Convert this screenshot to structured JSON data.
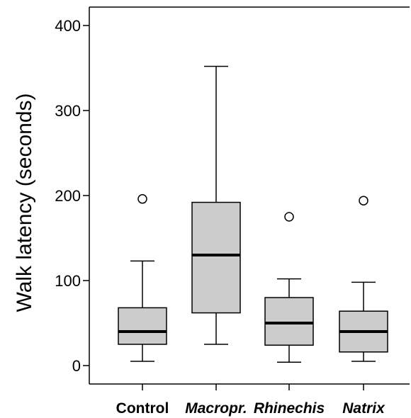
{
  "chart_data": {
    "type": "box",
    "ylabel": "Walk latency (seconds)",
    "xlabel": "",
    "ylim": [
      -20,
      420
    ],
    "yticks": [
      0,
      100,
      200,
      300,
      400
    ],
    "grid": false,
    "colors": {
      "box_fill": "#cccccc",
      "stroke": "#000000"
    },
    "categories": [
      {
        "label": "Control",
        "italic": false,
        "whisker_low": 5,
        "q1": 25,
        "median": 40,
        "q3": 68,
        "whisker_high": 123,
        "outliers": [
          196
        ]
      },
      {
        "label": "Macropr.",
        "italic": true,
        "whisker_low": 25,
        "q1": 62,
        "median": 130,
        "q3": 192,
        "whisker_high": 352,
        "outliers": []
      },
      {
        "label": "Rhinechis",
        "italic": true,
        "whisker_low": 4,
        "q1": 24,
        "median": 50,
        "q3": 80,
        "whisker_high": 102,
        "outliers": [
          175
        ]
      },
      {
        "label": "Natrix",
        "italic": true,
        "whisker_low": 5,
        "q1": 16,
        "median": 40,
        "q3": 64,
        "whisker_high": 98,
        "outliers": [
          194
        ]
      }
    ]
  }
}
